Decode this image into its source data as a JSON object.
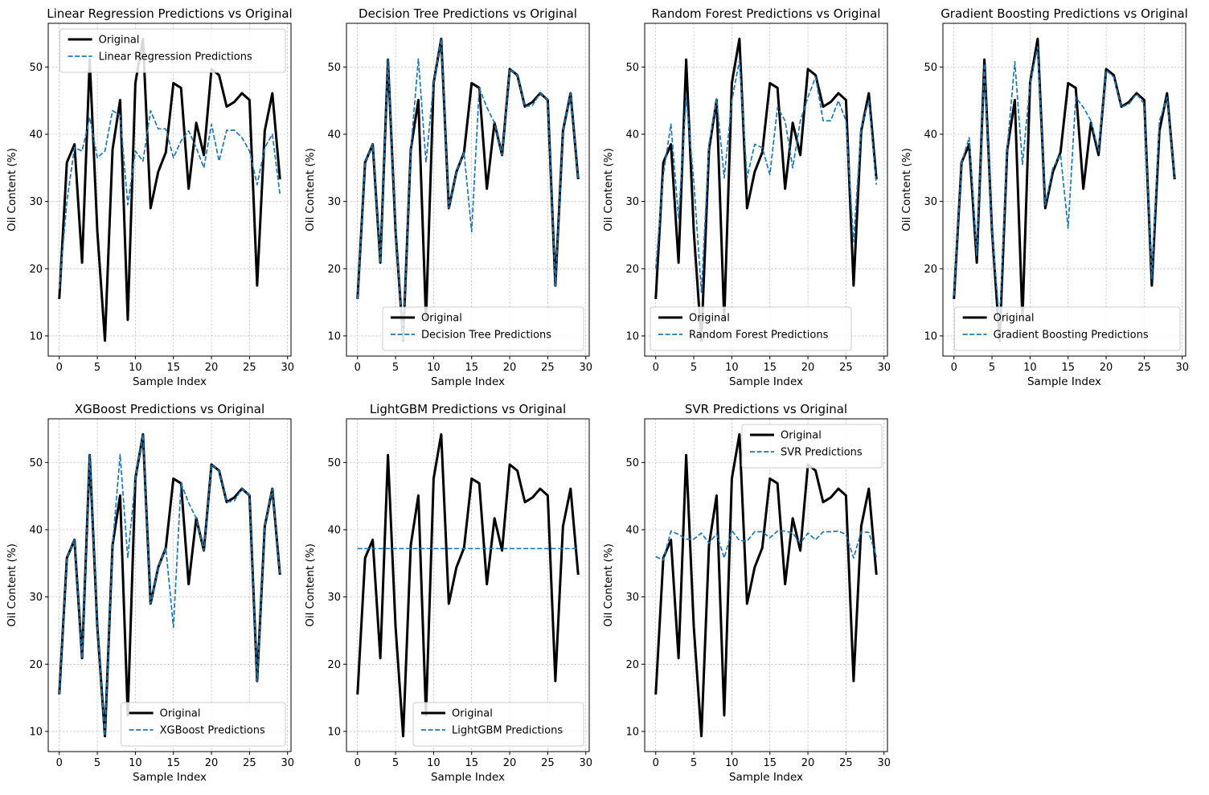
{
  "colors": {
    "original": "#000000",
    "prediction": "#1f77b4",
    "grid": "#b0b0b0",
    "background": "#ffffff"
  },
  "chart_data": [
    {
      "type": "line",
      "title": "Linear Regression Predictions vs Original",
      "xlabel": "Sample Index",
      "ylabel": "Oil Content (%)",
      "xlim": [
        -1.45,
        30.45
      ],
      "ylim": [
        7.0,
        56.5
      ],
      "xticks": [
        0,
        5,
        10,
        15,
        20,
        25,
        30
      ],
      "yticks": [
        10,
        20,
        30,
        40,
        50
      ],
      "grid": true,
      "legend_position": "top-right",
      "series": [
        {
          "name": "Original",
          "style": "solid",
          "values": [
            15.5,
            35.8,
            38.5,
            20.9,
            51.1,
            25.6,
            9.3,
            37.7,
            45.1,
            12.4,
            47.6,
            54.2,
            29.0,
            34.4,
            37.3,
            47.6,
            46.9,
            31.9,
            41.7,
            36.9,
            49.7,
            48.8,
            44.1,
            44.8,
            46.1,
            45.1,
            17.5,
            40.5,
            46.1,
            33.3
          ]
        },
        {
          "name": "Linear Regression Predictions",
          "style": "dashed",
          "values": [
            17.0,
            30.0,
            38.0,
            37.5,
            42.5,
            36.5,
            37.5,
            43.5,
            42.8,
            29.5,
            37.5,
            36.0,
            43.5,
            40.8,
            40.8,
            36.5,
            39.0,
            40.5,
            38.0,
            35.0,
            41.5,
            36.0,
            40.6,
            40.6,
            39.5,
            37.5,
            32.5,
            38.0,
            40.0,
            31.0
          ]
        }
      ]
    },
    {
      "type": "line",
      "title": "Decision Tree Predictions vs Original",
      "xlabel": "Sample Index",
      "ylabel": "Oil Content (%)",
      "xlim": [
        -1.45,
        30.45
      ],
      "ylim": [
        7.0,
        56.5
      ],
      "xticks": [
        0,
        5,
        10,
        15,
        20,
        25,
        30
      ],
      "yticks": [
        10,
        20,
        30,
        40,
        50
      ],
      "grid": true,
      "legend_position": "bottom-right",
      "series": [
        {
          "name": "Original",
          "style": "solid",
          "values": [
            15.5,
            35.8,
            38.5,
            20.9,
            51.1,
            25.6,
            9.3,
            37.7,
            45.1,
            12.4,
            47.6,
            54.2,
            29.0,
            34.4,
            37.3,
            47.6,
            46.9,
            31.9,
            41.7,
            36.9,
            49.7,
            48.8,
            44.1,
            44.8,
            46.1,
            45.1,
            17.5,
            40.5,
            46.1,
            33.3
          ]
        },
        {
          "name": "Decision Tree Predictions",
          "style": "dashed",
          "values": [
            15.5,
            35.8,
            38.5,
            20.9,
            51.1,
            25.6,
            9.3,
            37.7,
            51.2,
            35.8,
            47.6,
            54.2,
            29.0,
            34.4,
            37.3,
            25.5,
            46.9,
            44.0,
            41.7,
            36.9,
            49.7,
            48.8,
            44.1,
            44.3,
            46.1,
            45.1,
            17.5,
            40.5,
            46.1,
            33.3
          ]
        }
      ]
    },
    {
      "type": "line",
      "title": "Random Forest Predictions vs Original",
      "xlabel": "Sample Index",
      "ylabel": "Oil Content (%)",
      "xlim": [
        -1.45,
        30.45
      ],
      "ylim": [
        7.0,
        56.5
      ],
      "xticks": [
        0,
        5,
        10,
        15,
        20,
        25,
        30
      ],
      "yticks": [
        10,
        20,
        30,
        40,
        50
      ],
      "grid": true,
      "legend_position": "bottom-left",
      "series": [
        {
          "name": "Original",
          "style": "solid",
          "values": [
            15.5,
            35.8,
            38.5,
            20.9,
            51.1,
            25.6,
            9.3,
            37.7,
            45.1,
            12.4,
            47.6,
            54.2,
            29.0,
            34.4,
            37.3,
            47.6,
            46.9,
            31.9,
            41.7,
            36.9,
            49.7,
            48.8,
            44.1,
            44.8,
            46.1,
            45.1,
            17.5,
            40.5,
            46.1,
            33.3
          ]
        },
        {
          "name": "Random Forest Predictions",
          "style": "dashed",
          "values": [
            20.0,
            34.0,
            41.5,
            27.5,
            45.5,
            33.0,
            16.5,
            38.5,
            45.3,
            33.5,
            45.0,
            51.0,
            33.5,
            38.5,
            38.0,
            34.0,
            44.0,
            42.0,
            35.0,
            42.0,
            45.5,
            48.5,
            42.0,
            42.0,
            45.0,
            42.0,
            24.0,
            41.0,
            45.0,
            32.5
          ]
        }
      ]
    },
    {
      "type": "line",
      "title": "Gradient Boosting Predictions vs Original",
      "xlabel": "Sample Index",
      "ylabel": "Oil Content (%)",
      "xlim": [
        -1.45,
        30.45
      ],
      "ylim": [
        7.0,
        56.5
      ],
      "xticks": [
        0,
        5,
        10,
        15,
        20,
        25,
        30
      ],
      "yticks": [
        10,
        20,
        30,
        40,
        50
      ],
      "grid": true,
      "legend_position": "bottom-right",
      "series": [
        {
          "name": "Original",
          "style": "solid",
          "values": [
            15.5,
            35.8,
            38.5,
            20.9,
            51.1,
            25.6,
            9.3,
            37.7,
            45.1,
            12.4,
            47.6,
            54.2,
            29.0,
            34.4,
            37.3,
            47.6,
            46.9,
            31.9,
            41.7,
            36.9,
            49.7,
            48.8,
            44.1,
            44.8,
            46.1,
            45.1,
            17.5,
            40.5,
            46.1,
            33.3
          ]
        },
        {
          "name": "Gradient Boosting Predictions",
          "style": "dashed",
          "values": [
            16.0,
            35.8,
            39.5,
            22.0,
            50.5,
            25.5,
            12.0,
            38.0,
            50.8,
            35.5,
            47.5,
            53.0,
            29.5,
            35.0,
            37.0,
            26.0,
            45.5,
            44.0,
            42.0,
            37.5,
            49.5,
            48.5,
            44.0,
            44.5,
            46.0,
            44.5,
            18.5,
            42.0,
            45.5,
            33.5
          ]
        }
      ]
    },
    {
      "type": "line",
      "title": "XGBoost Predictions vs Original",
      "xlabel": "Sample Index",
      "ylabel": "Oil Content (%)",
      "xlim": [
        -1.45,
        30.45
      ],
      "ylim": [
        7.0,
        56.5
      ],
      "xticks": [
        0,
        5,
        10,
        15,
        20,
        25,
        30
      ],
      "yticks": [
        10,
        20,
        30,
        40,
        50
      ],
      "grid": true,
      "legend_position": "bottom-right",
      "series": [
        {
          "name": "Original",
          "style": "solid",
          "values": [
            15.5,
            35.8,
            38.5,
            20.9,
            51.1,
            25.6,
            9.3,
            37.7,
            45.1,
            12.4,
            47.6,
            54.2,
            29.0,
            34.4,
            37.3,
            47.6,
            46.9,
            31.9,
            41.7,
            36.9,
            49.7,
            48.8,
            44.1,
            44.8,
            46.1,
            45.1,
            17.5,
            40.5,
            46.1,
            33.3
          ]
        },
        {
          "name": "XGBoost Predictions",
          "style": "dashed",
          "values": [
            15.5,
            35.8,
            38.5,
            20.9,
            51.1,
            25.6,
            9.3,
            37.7,
            51.2,
            35.8,
            47.6,
            54.2,
            29.0,
            34.4,
            37.3,
            25.5,
            46.9,
            44.0,
            41.7,
            36.9,
            49.7,
            48.8,
            44.1,
            44.3,
            46.1,
            45.1,
            17.5,
            40.5,
            46.1,
            33.3
          ]
        }
      ]
    },
    {
      "type": "line",
      "title": "LightGBM Predictions vs Original",
      "xlabel": "Sample Index",
      "ylabel": "Oil Content (%)",
      "xlim": [
        -1.45,
        30.45
      ],
      "ylim": [
        7.0,
        56.5
      ],
      "xticks": [
        0,
        5,
        10,
        15,
        20,
        25,
        30
      ],
      "yticks": [
        10,
        20,
        30,
        40,
        50
      ],
      "grid": true,
      "legend_position": "bottom-right",
      "series": [
        {
          "name": "Original",
          "style": "solid",
          "values": [
            15.5,
            35.8,
            38.5,
            20.9,
            51.1,
            25.6,
            9.3,
            37.7,
            45.1,
            12.4,
            47.6,
            54.2,
            29.0,
            34.4,
            37.3,
            47.6,
            46.9,
            31.9,
            41.7,
            36.9,
            49.7,
            48.8,
            44.1,
            44.8,
            46.1,
            45.1,
            17.5,
            40.5,
            46.1,
            33.3
          ]
        },
        {
          "name": "LightGBM Predictions",
          "style": "dashed",
          "values": [
            37.2,
            37.2,
            37.2,
            37.2,
            37.2,
            37.2,
            37.2,
            37.2,
            37.2,
            37.2,
            37.2,
            37.2,
            37.2,
            37.2,
            37.2,
            37.2,
            37.2,
            37.2,
            37.2,
            37.2,
            37.2,
            37.2,
            37.2,
            37.2,
            37.2,
            37.2,
            37.2,
            37.2,
            37.2,
            37.2
          ]
        }
      ]
    },
    {
      "type": "line",
      "title": "SVR Predictions vs Original",
      "xlabel": "Sample Index",
      "ylabel": "Oil Content (%)",
      "xlim": [
        -1.45,
        30.45
      ],
      "ylim": [
        7.0,
        56.5
      ],
      "xticks": [
        0,
        5,
        10,
        15,
        20,
        25,
        30
      ],
      "yticks": [
        10,
        20,
        30,
        40,
        50
      ],
      "grid": true,
      "legend_position": "top-right",
      "series": [
        {
          "name": "Original",
          "style": "solid",
          "values": [
            15.5,
            35.8,
            38.5,
            20.9,
            51.1,
            25.6,
            9.3,
            37.7,
            45.1,
            12.4,
            47.6,
            54.2,
            29.0,
            34.4,
            37.3,
            47.6,
            46.9,
            31.9,
            41.7,
            36.9,
            49.7,
            48.8,
            44.1,
            44.8,
            46.1,
            45.1,
            17.5,
            40.5,
            46.1,
            33.3
          ]
        },
        {
          "name": "SVR Predictions",
          "style": "dashed",
          "values": [
            36.0,
            35.5,
            39.8,
            39.3,
            38.6,
            38.6,
            39.5,
            38.0,
            39.4,
            35.8,
            39.9,
            38.4,
            38.3,
            39.7,
            39.7,
            38.8,
            39.8,
            39.8,
            39.5,
            38.0,
            39.5,
            38.5,
            39.7,
            39.7,
            39.8,
            39.3,
            35.8,
            39.7,
            39.6,
            36.0
          ]
        }
      ]
    }
  ]
}
